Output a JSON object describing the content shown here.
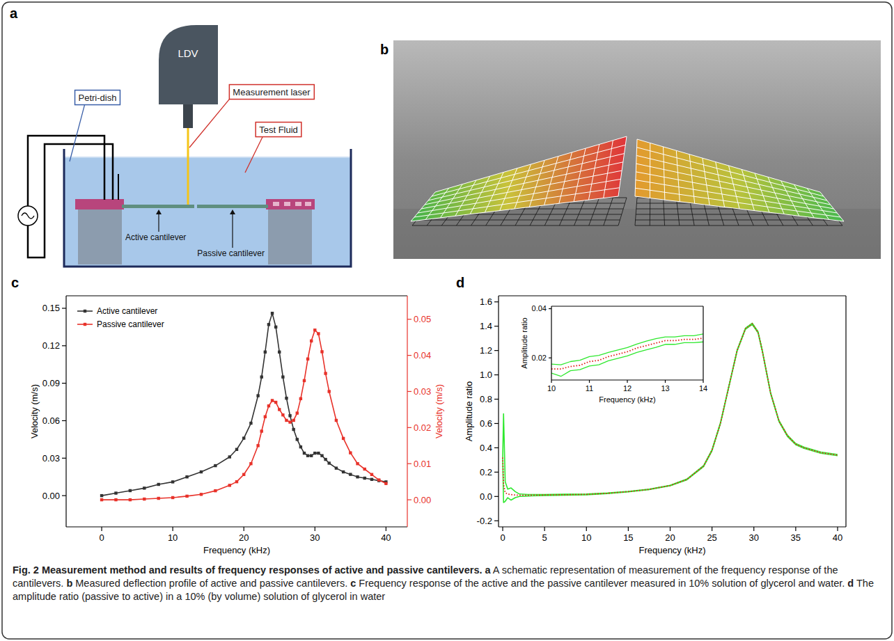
{
  "chart_data": [
    {
      "type": "line",
      "panel_label": "c",
      "x_label": "Frequency (kHz)",
      "y_label": "Velocity (m/s)",
      "y2_label": "Velocity (m/s)",
      "x": [
        0,
        2,
        4,
        6,
        8,
        10,
        12,
        14,
        16,
        18,
        19,
        20,
        21,
        22,
        22.5,
        23,
        23.5,
        24,
        24.5,
        25,
        25.5,
        26,
        26.5,
        27,
        27.5,
        28,
        28.5,
        29,
        29.5,
        30,
        30.5,
        31,
        31.5,
        32,
        33,
        34,
        35,
        36,
        37,
        38,
        39,
        40
      ],
      "xlim": [
        -5,
        43
      ],
      "xticks": [
        0,
        10,
        20,
        30,
        40
      ],
      "ylim": [
        -0.025,
        0.16
      ],
      "yticks": [
        {
          "value": 0,
          "label": "0.00"
        },
        0.03,
        0.06,
        0.09,
        0.12,
        0.15
      ],
      "y2lim": [
        -0.0075,
        0.0565
      ],
      "y2ticks": [
        {
          "value": 0,
          "label": "0.00"
        },
        0.01,
        0.02,
        0.03,
        0.04,
        0.05
      ],
      "legend": "upper left",
      "series": [
        {
          "name": "Active cantilever",
          "color": "#333333",
          "marker": "square",
          "line_style": "solid",
          "values": [
            0,
            0.002,
            0.004,
            0.006,
            0.009,
            0.011,
            0.015,
            0.019,
            0.024,
            0.031,
            0.037,
            0.046,
            0.058,
            0.08,
            0.095,
            0.115,
            0.137,
            0.146,
            0.135,
            0.115,
            0.095,
            0.078,
            0.064,
            0.053,
            0.045,
            0.039,
            0.034,
            0.032,
            0.032,
            0.034,
            0.034,
            0.032,
            0.029,
            0.026,
            0.022,
            0.019,
            0.017,
            0.015,
            0.014,
            0.013,
            0.012,
            0.011
          ]
        },
        {
          "name": "Passive cantilever",
          "color": "#e8322a",
          "marker": "square",
          "line_style": "solid",
          "axis": "y2",
          "values": [
            0,
            0,
            0,
            0.0002,
            0.0004,
            0.0006,
            0.001,
            0.0015,
            0.0025,
            0.004,
            0.005,
            0.007,
            0.01,
            0.015,
            0.019,
            0.023,
            0.026,
            0.0275,
            0.027,
            0.025,
            0.0235,
            0.022,
            0.0215,
            0.022,
            0.024,
            0.028,
            0.033,
            0.039,
            0.044,
            0.047,
            0.046,
            0.041,
            0.035,
            0.03,
            0.022,
            0.017,
            0.013,
            0.01,
            0.0085,
            0.007,
            0.0055,
            0.0045
          ]
        }
      ]
    },
    {
      "type": "line",
      "panel_label": "d",
      "x_label": "Frequency (kHz)",
      "y_label": "Amplitude ratio",
      "x": [
        0,
        0.1,
        0.3,
        0.6,
        1,
        1.5,
        2,
        3,
        5,
        7.5,
        10,
        12.5,
        15,
        17.5,
        20,
        22,
        24,
        25,
        26,
        27,
        28,
        29,
        29.8,
        30.5,
        31,
        32,
        33,
        34,
        35,
        36,
        38,
        40
      ],
      "xlim": [
        -0.5,
        41
      ],
      "xticks": [
        0,
        5,
        10,
        15,
        20,
        25,
        30,
        35,
        40
      ],
      "ylim": [
        -0.25,
        1.65
      ],
      "yticks": [
        -0.2,
        {
          "value": 0,
          "label": "0.0"
        },
        0.2,
        0.4,
        0.6,
        0.8,
        {
          "value": 1,
          "label": "1.0"
        },
        1.2,
        1.4,
        1.6
      ],
      "series": [
        {
          "color": "#2ee82e",
          "line_style": "solid",
          "values": [
            0.32,
            0.68,
            0.12,
            0.06,
            0.07,
            0.04,
            0.02,
            0.016,
            0.016,
            0.018,
            0.02,
            0.028,
            0.042,
            0.06,
            0.092,
            0.143,
            0.254,
            0.385,
            0.605,
            0.905,
            1.205,
            1.385,
            1.425,
            1.355,
            1.205,
            0.855,
            0.625,
            0.505,
            0.435,
            0.405,
            0.365,
            0.345
          ]
        },
        {
          "color": "#2ee82e",
          "line_style": "solid",
          "values": [
            0.32,
            -0.05,
            -0.04,
            -0.01,
            -0.03,
            -0.01,
            0,
            0.004,
            0.008,
            0.01,
            0.014,
            0.024,
            0.038,
            0.056,
            0.088,
            0.137,
            0.246,
            0.375,
            0.595,
            0.895,
            1.195,
            1.375,
            1.415,
            1.345,
            1.195,
            0.845,
            0.615,
            0.495,
            0.425,
            0.395,
            0.355,
            0.335
          ]
        },
        {
          "color": "#e0201b",
          "line_style": "dotted",
          "values": [
            0.32,
            0.1,
            0.03,
            0.02,
            0.015,
            0.012,
            0.01,
            0.01,
            0.012,
            0.014,
            0.017,
            0.026,
            0.04,
            0.058,
            0.09,
            0.14,
            0.25,
            0.38,
            0.6,
            0.9,
            1.2,
            1.38,
            1.42,
            1.35,
            1.2,
            0.85,
            0.62,
            0.5,
            0.43,
            0.4,
            0.36,
            0.34
          ]
        }
      ]
    },
    {
      "type": "line",
      "x_label": "Frequency (kHz)",
      "y_label": "Amplitude ratio",
      "x": [
        10,
        10.25,
        10.5,
        10.75,
        11,
        11.25,
        11.5,
        11.75,
        12,
        12.25,
        12.5,
        12.75,
        13,
        13.25,
        13.5,
        13.75,
        14
      ],
      "xlim": [
        10,
        14
      ],
      "xticks": [
        10,
        11,
        12,
        13,
        14
      ],
      "ylim": [
        0.011,
        0.041
      ],
      "yticks": [
        0.02,
        0.04
      ],
      "series": [
        {
          "color": "#2ee82e",
          "line_style": "solid",
          "values": [
            0.0175,
            0.0172,
            0.0185,
            0.019,
            0.0205,
            0.021,
            0.0222,
            0.0232,
            0.0242,
            0.0256,
            0.0268,
            0.0278,
            0.0285,
            0.0285,
            0.029,
            0.029,
            0.0297
          ]
        },
        {
          "color": "#2ee82e",
          "line_style": "solid",
          "values": [
            0.0138,
            0.0125,
            0.0148,
            0.0152,
            0.0167,
            0.0172,
            0.0188,
            0.0198,
            0.0208,
            0.0222,
            0.0233,
            0.0243,
            0.0255,
            0.0255,
            0.0262,
            0.0262,
            0.0265
          ]
        },
        {
          "color": "#e0201b",
          "line_style": "dotted",
          "values": [
            0.0155,
            0.0155,
            0.0165,
            0.017,
            0.0185,
            0.019,
            0.0205,
            0.0215,
            0.0225,
            0.024,
            0.025,
            0.026,
            0.027,
            0.027,
            0.0275,
            0.0275,
            0.028
          ]
        }
      ]
    }
  ],
  "diagram_a": {
    "panel_label": "a",
    "labels": {
      "ldv": "LDV",
      "laser": "Measurement laser",
      "fluid": "Test Fluid",
      "dish": "Petri-dish",
      "active": "Active cantilever",
      "passive": "Passive cantilever"
    }
  },
  "image_b": {
    "panel_label": "b"
  },
  "caption": {
    "title": "Fig. 2 Measurement method and results of frequency responses of active and passive cantilevers.",
    "items": [
      {
        "label": "a",
        "text": "A schematic representation of measurement of the frequency response of the cantilevers."
      },
      {
        "label": "b",
        "text": "Measured deflection profile of active and passive cantilevers."
      },
      {
        "label": "c",
        "text": "Frequency response of the active and the passive cantilever measured in 10% solution of glycerol and water."
      },
      {
        "label": "d",
        "text": "The amplitude ratio (passive to active) in a 10% (by volume) solution of glycerol in water"
      }
    ]
  }
}
